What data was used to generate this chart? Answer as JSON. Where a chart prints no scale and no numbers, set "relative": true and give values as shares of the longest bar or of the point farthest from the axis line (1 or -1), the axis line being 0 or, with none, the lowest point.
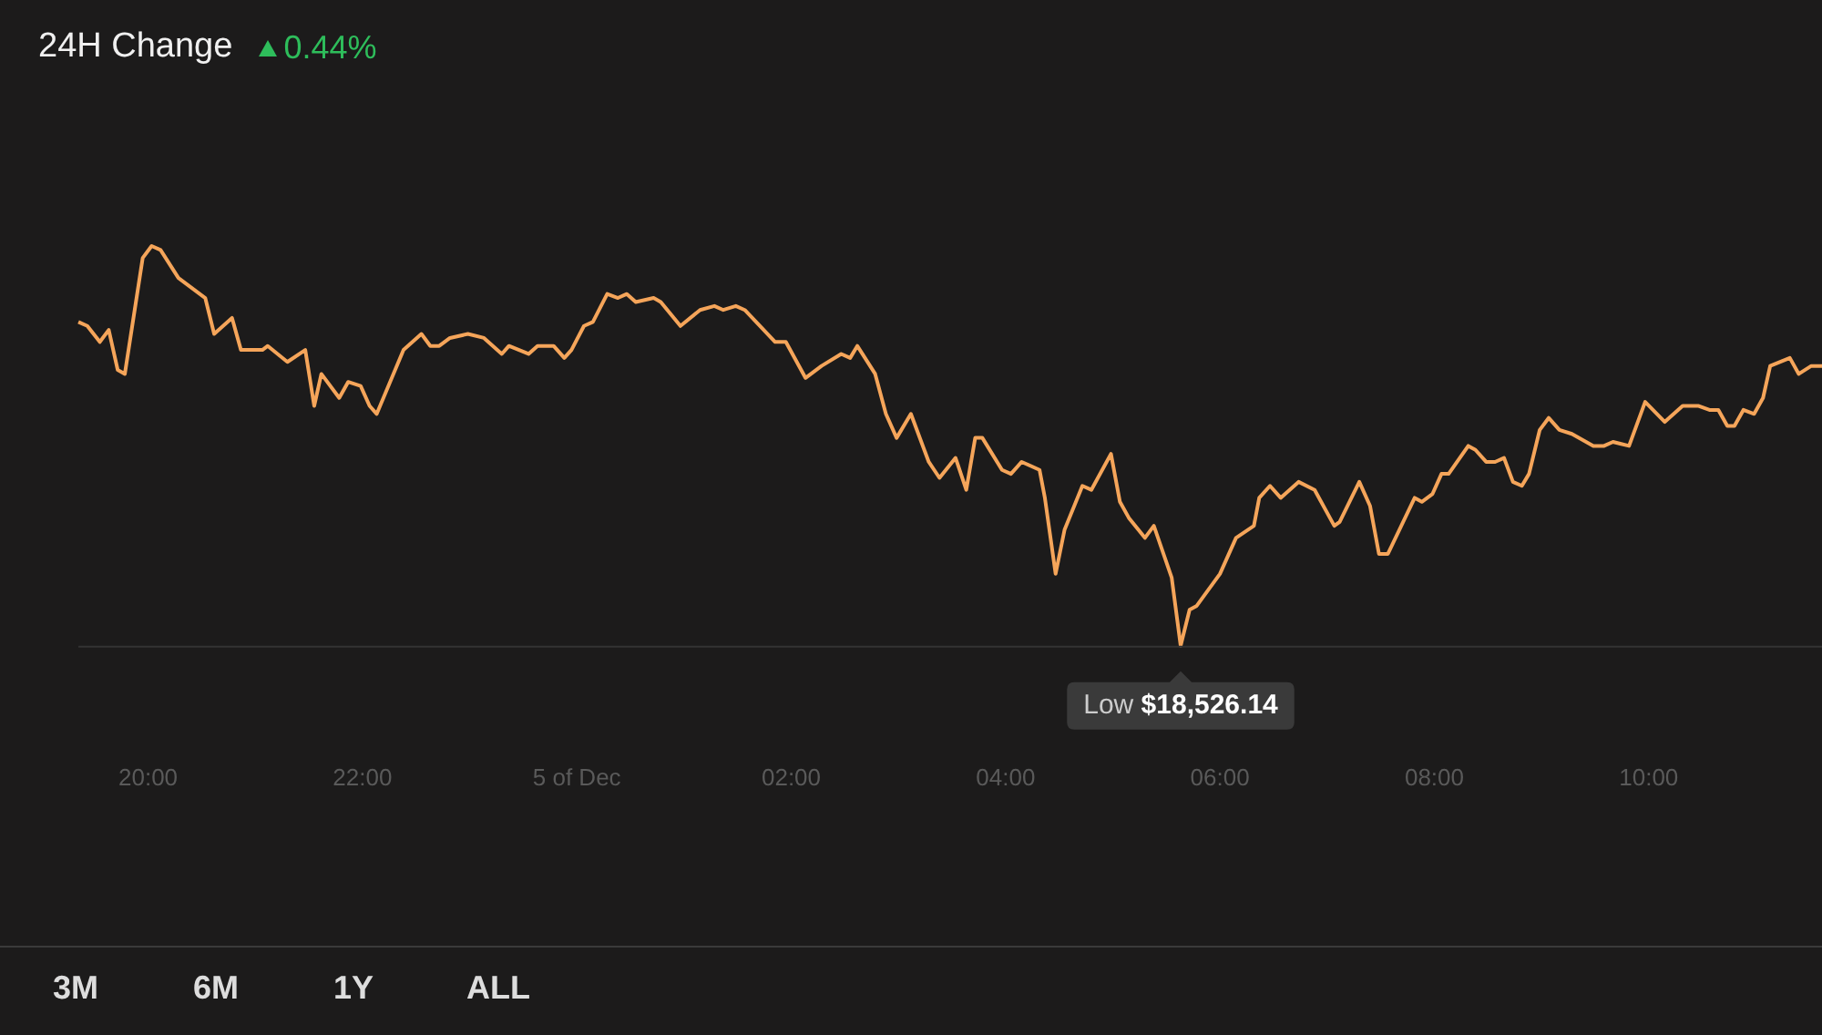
{
  "chart_data": {
    "type": "line",
    "title": "24H Change",
    "subtitle": "0.44%",
    "relative": true,
    "tick_labels": "x",
    "marker": "none",
    "line_style": "solid",
    "xlim": [
      "--12-04T19:21",
      "--12-05T11:37"
    ],
    "xticks": [
      {
        "value": "--12-04T20:00",
        "label": "20:00"
      },
      {
        "value": "--12-04T22:00",
        "label": "22:00"
      },
      {
        "value": "--12-05T00:00",
        "label": "5 of Dec"
      },
      {
        "value": "--12-05T02:00",
        "label": "02:00"
      },
      {
        "value": "--12-05T04:00",
        "label": "04:00"
      },
      {
        "value": "--12-05T06:00",
        "label": "06:00"
      },
      {
        "value": "--12-05T08:00",
        "label": "08:00"
      },
      {
        "value": "--12-05T10:00",
        "label": "10:00"
      }
    ],
    "x": [
      "--12-04T19:21",
      "--12-04T19:26",
      "--12-04T19:33",
      "--12-04T19:38",
      "--12-04T19:43",
      "--12-04T19:47",
      "--12-04T19:57",
      "--12-04T20:02",
      "--12-04T20:07",
      "--12-04T20:17",
      "--12-04T20:32",
      "--12-04T20:37",
      "--12-04T20:47",
      "--12-04T20:52",
      "--12-04T20:59",
      "--12-04T21:04",
      "--12-04T21:07",
      "--12-04T21:18",
      "--12-04T21:28",
      "--12-04T21:33",
      "--12-04T21:37",
      "--12-04T21:47",
      "--12-04T21:52",
      "--12-04T21:59",
      "--12-04T22:04",
      "--12-04T22:08",
      "--12-04T22:23",
      "--12-04T22:33",
      "--12-04T22:38",
      "--12-04T22:43",
      "--12-04T22:49",
      "--12-04T22:59",
      "--12-04T23:08",
      "--12-04T23:18",
      "--12-04T23:22",
      "--12-04T23:33",
      "--12-04T23:38",
      "--12-04T23:47",
      "--12-04T23:53",
      "--12-04T23:57",
      "--12-05T00:04",
      "--12-05T00:09",
      "--12-05T00:17",
      "--12-05T00:23",
      "--12-05T00:28",
      "--12-05T00:33",
      "--12-05T00:43",
      "--12-05T00:47",
      "--12-05T00:58",
      "--12-05T01:09",
      "--12-05T01:17",
      "--12-05T01:22",
      "--12-05T01:29",
      "--12-05T01:34",
      "--12-05T01:51",
      "--12-05T01:57",
      "--12-05T02:08",
      "--12-05T02:17",
      "--12-05T02:28",
      "--12-05T02:33",
      "--12-05T02:37",
      "--12-05T02:47",
      "--12-05T02:53",
      "--12-05T02:59",
      "--12-05T03:07",
      "--12-05T03:17",
      "--12-05T03:23",
      "--12-05T03:32",
      "--12-05T03:38",
      "--12-05T03:43",
      "--12-05T03:47",
      "--12-05T03:58",
      "--12-05T04:03",
      "--12-05T04:09",
      "--12-05T04:19",
      "--12-05T04:22",
      "--12-05T04:28",
      "--12-05T04:33",
      "--12-05T04:43",
      "--12-05T04:48",
      "--12-05T04:59",
      "--12-05T05:04",
      "--12-05T05:09",
      "--12-05T05:18",
      "--12-05T05:23",
      "--12-05T05:33",
      "--12-05T05:38",
      "--12-05T05:43",
      "--12-05T05:47",
      "--12-05T06:00",
      "--12-05T06:09",
      "--12-05T06:19",
      "--12-05T06:22",
      "--12-05T06:28",
      "--12-05T06:34",
      "--12-05T06:44",
      "--12-05T06:53",
      "--12-05T07:04",
      "--12-05T07:07",
      "--12-05T07:18",
      "--12-05T07:24",
      "--12-05T07:29",
      "--12-05T07:34",
      "--12-05T07:49",
      "--12-05T07:53",
      "--12-05T07:59",
      "--12-05T08:04",
      "--12-05T08:08",
      "--12-05T08:19",
      "--12-05T08:23",
      "--12-05T08:29",
      "--12-05T08:34",
      "--12-05T08:39",
      "--12-05T08:44",
      "--12-05T08:49",
      "--12-05T08:53",
      "--12-05T08:59",
      "--12-05T09:04",
      "--12-05T09:10",
      "--12-05T09:17",
      "--12-05T09:29",
      "--12-05T09:35",
      "--12-05T09:40",
      "--12-05T09:49",
      "--12-05T09:58",
      "--12-05T10:09",
      "--12-05T10:19",
      "--12-05T10:28",
      "--12-05T10:34",
      "--12-05T10:39",
      "--12-05T10:44",
      "--12-05T10:48",
      "--12-05T10:53",
      "--12-05T10:59",
      "--12-05T11:04",
      "--12-05T11:08",
      "--12-05T11:19",
      "--12-05T11:24",
      "--12-05T11:31",
      "--12-05T11:37"
    ],
    "series": [
      {
        "color": "#f5a55a",
        "values": [
          0.81,
          0.8,
          0.76,
          0.79,
          0.69,
          0.68,
          0.97,
          1,
          0.99,
          0.92,
          0.87,
          0.78,
          0.82,
          0.74,
          0.74,
          0.74,
          0.75,
          0.71,
          0.74,
          0.6,
          0.68,
          0.62,
          0.66,
          0.65,
          0.6,
          0.58,
          0.74,
          0.78,
          0.75,
          0.75,
          0.77,
          0.78,
          0.77,
          0.73,
          0.75,
          0.73,
          0.75,
          0.75,
          0.72,
          0.74,
          0.8,
          0.81,
          0.88,
          0.87,
          0.88,
          0.86,
          0.87,
          0.86,
          0.8,
          0.84,
          0.85,
          0.84,
          0.85,
          0.84,
          0.76,
          0.76,
          0.67,
          0.7,
          0.73,
          0.72,
          0.75,
          0.68,
          0.58,
          0.52,
          0.58,
          0.46,
          0.42,
          0.47,
          0.39,
          0.52,
          0.52,
          0.44,
          0.43,
          0.46,
          0.44,
          0.37,
          0.18,
          0.29,
          0.4,
          0.39,
          0.48,
          0.36,
          0.32,
          0.27,
          0.3,
          0.17,
          0,
          0.09,
          0.1,
          0.18,
          0.27,
          0.3,
          0.37,
          0.4,
          0.37,
          0.41,
          0.39,
          0.3,
          0.31,
          0.41,
          0.35,
          0.23,
          0.23,
          0.37,
          0.36,
          0.38,
          0.43,
          0.43,
          0.5,
          0.49,
          0.46,
          0.46,
          0.47,
          0.41,
          0.4,
          0.43,
          0.54,
          0.57,
          0.54,
          0.53,
          0.5,
          0.5,
          0.51,
          0.5,
          0.61,
          0.56,
          0.6,
          0.6,
          0.59,
          0.59,
          0.55,
          0.55,
          0.59,
          0.58,
          0.62,
          0.7,
          0.72,
          0.68,
          0.7,
          0.7
        ]
      }
    ],
    "annotations": [
      {
        "text": "Low $18,526.14",
        "x": "--12-05T05:38",
        "y": 0
      },
      "3M",
      "6M",
      "1Y",
      "ALL"
    ]
  }
}
